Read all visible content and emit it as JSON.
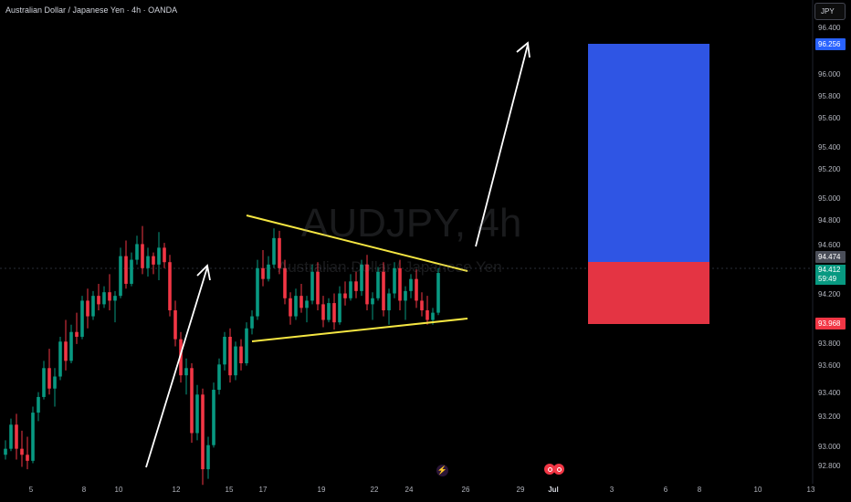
{
  "header": {
    "title": "Australian Dollar / Japanese Yen · 4h · OANDA",
    "currency_button": "JPY"
  },
  "watermark": {
    "symbol": "AUDJPY, 4h",
    "name": "Australian Dollar / Japanese Yen"
  },
  "price_axis": {
    "labels": [
      "96.400",
      "96.000",
      "95.800",
      "95.600",
      "95.400",
      "95.200",
      "95.000",
      "94.800",
      "94.600",
      "94.200",
      "93.800",
      "93.600",
      "93.400",
      "93.200",
      "93.000",
      "92.800"
    ],
    "tags": [
      {
        "text": "96.256",
        "color": "#2962ff"
      },
      {
        "text": "94.474",
        "color": "#4a4e59"
      },
      {
        "text": "93.968",
        "color": "#f23645"
      }
    ],
    "current": {
      "price": "94.412",
      "countdown": "59:49",
      "color": "#089981"
    }
  },
  "time_axis": {
    "labels": [
      "5",
      "8",
      "10",
      "12",
      "15",
      "17",
      "19",
      "22",
      "24",
      "26",
      "29",
      "Jul",
      "3",
      "6",
      "8",
      "10",
      "13"
    ]
  },
  "events": {
    "bolt": "⚡"
  },
  "chart_data": {
    "type": "candlestick",
    "symbol": "AUDJPY",
    "timeframe": "4h",
    "ylim": [
      92.72,
      96.45
    ],
    "colors": {
      "up": "#089981",
      "down": "#f23645",
      "pattern_lines": "#f5e642",
      "arrows": "#ffffff",
      "target_zone": "#2962ff",
      "stop_zone": "#f23645"
    },
    "candles": [
      [
        92.9,
        93.02,
        92.86,
        92.95
      ],
      [
        92.95,
        93.2,
        92.93,
        93.15
      ],
      [
        93.15,
        93.24,
        92.86,
        92.95
      ],
      [
        92.95,
        93.1,
        92.8,
        92.9
      ],
      [
        92.9,
        93.05,
        92.78,
        92.85
      ],
      [
        92.85,
        93.3,
        92.83,
        93.25
      ],
      [
        93.25,
        93.42,
        93.18,
        93.38
      ],
      [
        93.38,
        93.68,
        93.36,
        93.62
      ],
      [
        93.62,
        93.78,
        93.4,
        93.45
      ],
      [
        93.45,
        93.62,
        93.3,
        93.55
      ],
      [
        93.55,
        93.88,
        93.52,
        93.84
      ],
      [
        93.84,
        94.02,
        93.6,
        93.68
      ],
      [
        93.68,
        93.98,
        93.66,
        93.92
      ],
      [
        93.92,
        94.08,
        93.82,
        93.88
      ],
      [
        93.88,
        94.22,
        93.86,
        94.18
      ],
      [
        94.18,
        94.28,
        93.95,
        94.05
      ],
      [
        94.05,
        94.26,
        94.02,
        94.22
      ],
      [
        94.22,
        94.32,
        94.1,
        94.15
      ],
      [
        94.15,
        94.3,
        94.12,
        94.25
      ],
      [
        94.25,
        94.4,
        94.1,
        94.18
      ],
      [
        94.18,
        94.26,
        94.0,
        94.22
      ],
      [
        94.22,
        94.62,
        94.2,
        94.55
      ],
      [
        94.55,
        94.68,
        94.28,
        94.32
      ],
      [
        94.32,
        94.58,
        94.3,
        94.52
      ],
      [
        94.52,
        94.72,
        94.48,
        94.65
      ],
      [
        94.65,
        94.8,
        94.4,
        94.45
      ],
      [
        94.45,
        94.62,
        94.38,
        94.55
      ],
      [
        94.55,
        94.58,
        94.4,
        94.48
      ],
      [
        94.48,
        94.75,
        94.35,
        94.62
      ],
      [
        94.62,
        94.66,
        94.45,
        94.5
      ],
      [
        94.5,
        94.56,
        94.05,
        94.1
      ],
      [
        94.1,
        94.18,
        93.8,
        93.86
      ],
      [
        93.86,
        93.92,
        93.5,
        93.56
      ],
      [
        93.56,
        93.7,
        93.4,
        93.62
      ],
      [
        93.62,
        93.66,
        93.0,
        93.08
      ],
      [
        93.08,
        93.48,
        93.02,
        93.4
      ],
      [
        93.4,
        93.45,
        92.65,
        92.78
      ],
      [
        92.78,
        93.05,
        92.7,
        92.98
      ],
      [
        92.98,
        93.5,
        92.96,
        93.44
      ],
      [
        93.44,
        93.7,
        93.4,
        93.65
      ],
      [
        93.65,
        93.92,
        93.6,
        93.88
      ],
      [
        93.88,
        93.95,
        93.5,
        93.56
      ],
      [
        93.56,
        93.84,
        93.52,
        93.8
      ],
      [
        93.8,
        93.86,
        93.6,
        93.66
      ],
      [
        93.66,
        94.0,
        93.64,
        93.95
      ],
      [
        93.95,
        94.1,
        93.9,
        94.05
      ],
      [
        94.05,
        94.52,
        94.02,
        94.45
      ],
      [
        94.45,
        94.6,
        94.3,
        94.36
      ],
      [
        94.36,
        94.55,
        94.34,
        94.48
      ],
      [
        94.48,
        94.78,
        94.45,
        94.7
      ],
      [
        94.7,
        94.76,
        94.4,
        94.45
      ],
      [
        94.45,
        94.52,
        94.15,
        94.2
      ],
      [
        94.2,
        94.25,
        93.98,
        94.05
      ],
      [
        94.05,
        94.28,
        94.02,
        94.22
      ],
      [
        94.22,
        94.32,
        94.08,
        94.12
      ],
      [
        94.12,
        94.22,
        94.0,
        94.18
      ],
      [
        94.18,
        94.48,
        94.15,
        94.42
      ],
      [
        94.42,
        94.5,
        94.1,
        94.15
      ],
      [
        94.15,
        94.22,
        93.96,
        94.02
      ],
      [
        94.02,
        94.2,
        94.0,
        94.16
      ],
      [
        94.16,
        94.24,
        93.94,
        94.0
      ],
      [
        94.0,
        94.3,
        93.98,
        94.24
      ],
      [
        94.24,
        94.34,
        94.14,
        94.2
      ],
      [
        94.2,
        94.4,
        94.18,
        94.34
      ],
      [
        94.34,
        94.42,
        94.2,
        94.26
      ],
      [
        94.26,
        94.52,
        94.22,
        94.48
      ],
      [
        94.48,
        94.56,
        94.1,
        94.15
      ],
      [
        94.15,
        94.25,
        94.02,
        94.2
      ],
      [
        94.2,
        94.46,
        94.18,
        94.42
      ],
      [
        94.42,
        94.5,
        94.05,
        94.1
      ],
      [
        94.1,
        94.28,
        93.98,
        94.24
      ],
      [
        94.24,
        94.5,
        94.2,
        94.45
      ],
      [
        94.45,
        94.52,
        94.1,
        94.18
      ],
      [
        94.18,
        94.3,
        94.02,
        94.26
      ],
      [
        94.26,
        94.4,
        94.2,
        94.36
      ],
      [
        94.36,
        94.44,
        94.12,
        94.18
      ],
      [
        94.18,
        94.25,
        94.05,
        94.1
      ],
      [
        94.1,
        94.22,
        93.98,
        94.02
      ],
      [
        94.02,
        94.12,
        93.98,
        94.08
      ],
      [
        94.08,
        94.45,
        94.06,
        94.41
      ]
    ],
    "triangle": {
      "upper_line": {
        "from": [
          0,
          94.84
        ],
        "to": [
          1,
          94.39
        ]
      },
      "lower_line": {
        "from": [
          0,
          93.9
        ],
        "to": [
          1,
          94.07
        ]
      }
    },
    "position": {
      "target": "96.256",
      "entry": "94.474",
      "stop": "93.968"
    }
  }
}
